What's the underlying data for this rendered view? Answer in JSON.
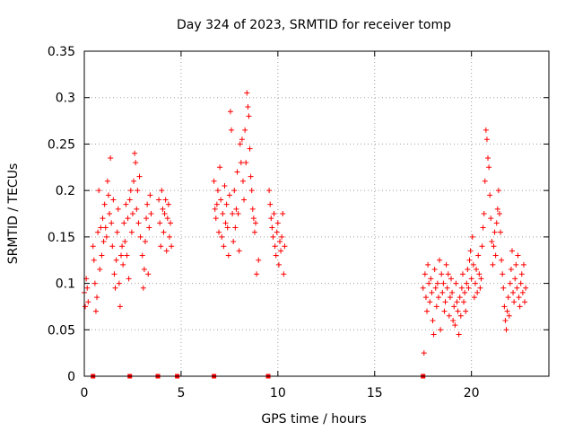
{
  "chart_data": {
    "type": "scatter",
    "title": "Day 324 of 2023, SRMTID for receiver tomp",
    "xlabel": "GPS time / hours",
    "ylabel": "SRMTID / TECUs",
    "xlim": [
      0,
      24
    ],
    "ylim": [
      0,
      0.35
    ],
    "xticks": [
      0,
      5,
      10,
      15,
      20
    ],
    "xtick_labels": [
      "0",
      "5",
      "10",
      "15",
      "20"
    ],
    "yticks": [
      0,
      0.05,
      0.1,
      0.15,
      0.2,
      0.25,
      0.3,
      0.35
    ],
    "ytick_labels": [
      "0",
      "0.05",
      "0.1",
      "0.15",
      "0.2",
      "0.25",
      "0.3",
      "0.35"
    ],
    "grid": true,
    "marker": "+",
    "color": "#ff0000",
    "series": [
      {
        "name": "SRMTID",
        "points": [
          [
            0.0,
            0.09
          ],
          [
            0.05,
            0.075
          ],
          [
            0.1,
            0.105
          ],
          [
            0.15,
            0.095
          ],
          [
            0.2,
            0.08
          ],
          [
            0.45,
            0.14
          ],
          [
            0.5,
            0.125
          ],
          [
            0.55,
            0.1
          ],
          [
            0.6,
            0.07
          ],
          [
            0.65,
            0.085
          ],
          [
            0.7,
            0.155
          ],
          [
            0.75,
            0.2
          ],
          [
            0.8,
            0.115
          ],
          [
            0.85,
            0.16
          ],
          [
            0.9,
            0.13
          ],
          [
            0.95,
            0.17
          ],
          [
            1.0,
            0.145
          ],
          [
            1.05,
            0.185
          ],
          [
            1.1,
            0.16
          ],
          [
            1.15,
            0.15
          ],
          [
            1.2,
            0.21
          ],
          [
            1.25,
            0.195
          ],
          [
            1.3,
            0.175
          ],
          [
            1.35,
            0.235
          ],
          [
            1.4,
            0.165
          ],
          [
            1.45,
            0.14
          ],
          [
            1.5,
            0.19
          ],
          [
            1.55,
            0.11
          ],
          [
            1.6,
            0.095
          ],
          [
            1.65,
            0.125
          ],
          [
            1.7,
            0.155
          ],
          [
            1.75,
            0.18
          ],
          [
            1.8,
            0.1
          ],
          [
            1.85,
            0.075
          ],
          [
            1.9,
            0.13
          ],
          [
            1.95,
            0.14
          ],
          [
            2.0,
            0.12
          ],
          [
            2.05,
            0.165
          ],
          [
            2.1,
            0.145
          ],
          [
            2.15,
            0.185
          ],
          [
            2.2,
            0.13
          ],
          [
            2.25,
            0.17
          ],
          [
            2.3,
            0.105
          ],
          [
            2.35,
            0.19
          ],
          [
            2.4,
            0.2
          ],
          [
            2.45,
            0.155
          ],
          [
            2.5,
            0.175
          ],
          [
            2.55,
            0.21
          ],
          [
            2.6,
            0.24
          ],
          [
            2.65,
            0.23
          ],
          [
            2.7,
            0.18
          ],
          [
            2.75,
            0.2
          ],
          [
            2.8,
            0.165
          ],
          [
            2.85,
            0.215
          ],
          [
            2.9,
            0.15
          ],
          [
            3.0,
            0.13
          ],
          [
            3.05,
            0.095
          ],
          [
            3.1,
            0.115
          ],
          [
            3.15,
            0.145
          ],
          [
            3.2,
            0.17
          ],
          [
            3.25,
            0.185
          ],
          [
            3.3,
            0.11
          ],
          [
            3.35,
            0.16
          ],
          [
            3.4,
            0.195
          ],
          [
            3.45,
            0.175
          ],
          [
            3.85,
            0.19
          ],
          [
            3.9,
            0.165
          ],
          [
            3.95,
            0.14
          ],
          [
            4.0,
            0.2
          ],
          [
            4.05,
            0.18
          ],
          [
            4.1,
            0.155
          ],
          [
            4.15,
            0.175
          ],
          [
            4.2,
            0.19
          ],
          [
            4.25,
            0.135
          ],
          [
            4.3,
            0.17
          ],
          [
            4.35,
            0.185
          ],
          [
            4.4,
            0.15
          ],
          [
            4.45,
            0.165
          ],
          [
            4.5,
            0.14
          ],
          [
            6.7,
            0.21
          ],
          [
            6.75,
            0.18
          ],
          [
            6.8,
            0.17
          ],
          [
            6.85,
            0.185
          ],
          [
            6.9,
            0.2
          ],
          [
            6.95,
            0.155
          ],
          [
            7.0,
            0.225
          ],
          [
            7.05,
            0.19
          ],
          [
            7.1,
            0.15
          ],
          [
            7.15,
            0.175
          ],
          [
            7.2,
            0.14
          ],
          [
            7.25,
            0.205
          ],
          [
            7.3,
            0.165
          ],
          [
            7.35,
            0.185
          ],
          [
            7.4,
            0.16
          ],
          [
            7.45,
            0.13
          ],
          [
            7.5,
            0.195
          ],
          [
            7.55,
            0.285
          ],
          [
            7.6,
            0.265
          ],
          [
            7.65,
            0.175
          ],
          [
            7.7,
            0.145
          ],
          [
            7.75,
            0.2
          ],
          [
            7.8,
            0.16
          ],
          [
            7.85,
            0.18
          ],
          [
            7.9,
            0.22
          ],
          [
            7.95,
            0.175
          ],
          [
            8.0,
            0.135
          ],
          [
            8.05,
            0.25
          ],
          [
            8.1,
            0.23
          ],
          [
            8.15,
            0.255
          ],
          [
            8.2,
            0.21
          ],
          [
            8.25,
            0.19
          ],
          [
            8.3,
            0.265
          ],
          [
            8.35,
            0.23
          ],
          [
            8.4,
            0.305
          ],
          [
            8.45,
            0.29
          ],
          [
            8.5,
            0.28
          ],
          [
            8.55,
            0.245
          ],
          [
            8.6,
            0.215
          ],
          [
            8.65,
            0.2
          ],
          [
            8.7,
            0.18
          ],
          [
            8.75,
            0.17
          ],
          [
            8.8,
            0.155
          ],
          [
            8.85,
            0.165
          ],
          [
            8.9,
            0.11
          ],
          [
            9.0,
            0.125
          ],
          [
            9.55,
            0.2
          ],
          [
            9.6,
            0.185
          ],
          [
            9.65,
            0.17
          ],
          [
            9.7,
            0.16
          ],
          [
            9.75,
            0.15
          ],
          [
            9.8,
            0.175
          ],
          [
            9.85,
            0.14
          ],
          [
            9.9,
            0.13
          ],
          [
            9.95,
            0.155
          ],
          [
            10.0,
            0.165
          ],
          [
            10.05,
            0.12
          ],
          [
            10.1,
            0.145
          ],
          [
            10.15,
            0.135
          ],
          [
            10.2,
            0.15
          ],
          [
            10.25,
            0.175
          ],
          [
            10.3,
            0.11
          ],
          [
            10.35,
            0.14
          ],
          [
            17.5,
            0.095
          ],
          [
            17.55,
            0.025
          ],
          [
            17.6,
            0.11
          ],
          [
            17.65,
            0.085
          ],
          [
            17.7,
            0.07
          ],
          [
            17.75,
            0.12
          ],
          [
            17.8,
            0.1
          ],
          [
            17.85,
            0.08
          ],
          [
            17.9,
            0.105
          ],
          [
            17.95,
            0.09
          ],
          [
            18.0,
            0.06
          ],
          [
            18.05,
            0.045
          ],
          [
            18.1,
            0.115
          ],
          [
            18.15,
            0.095
          ],
          [
            18.2,
            0.075
          ],
          [
            18.25,
            0.1
          ],
          [
            18.3,
            0.085
          ],
          [
            18.35,
            0.125
          ],
          [
            18.4,
            0.05
          ],
          [
            18.45,
            0.11
          ],
          [
            18.5,
            0.09
          ],
          [
            18.55,
            0.1
          ],
          [
            18.6,
            0.07
          ],
          [
            18.65,
            0.08
          ],
          [
            18.7,
            0.12
          ],
          [
            18.75,
            0.095
          ],
          [
            18.8,
            0.11
          ],
          [
            18.85,
            0.065
          ],
          [
            18.9,
            0.085
          ],
          [
            18.95,
            0.105
          ],
          [
            19.0,
            0.09
          ],
          [
            19.05,
            0.06
          ],
          [
            19.1,
            0.075
          ],
          [
            19.15,
            0.055
          ],
          [
            19.2,
            0.1
          ],
          [
            19.25,
            0.08
          ],
          [
            19.3,
            0.07
          ],
          [
            19.35,
            0.045
          ],
          [
            19.4,
            0.085
          ],
          [
            19.45,
            0.065
          ],
          [
            19.5,
            0.095
          ],
          [
            19.55,
            0.11
          ],
          [
            19.6,
            0.08
          ],
          [
            19.65,
            0.09
          ],
          [
            19.7,
            0.07
          ],
          [
            19.75,
            0.1
          ],
          [
            19.8,
            0.115
          ],
          [
            19.85,
            0.095
          ],
          [
            19.9,
            0.125
          ],
          [
            19.95,
            0.135
          ],
          [
            20.0,
            0.105
          ],
          [
            20.05,
            0.15
          ],
          [
            20.1,
            0.12
          ],
          [
            20.15,
            0.085
          ],
          [
            20.2,
            0.1
          ],
          [
            20.25,
            0.115
          ],
          [
            20.3,
            0.09
          ],
          [
            20.35,
            0.13
          ],
          [
            20.4,
            0.11
          ],
          [
            20.45,
            0.095
          ],
          [
            20.5,
            0.105
          ],
          [
            20.55,
            0.14
          ],
          [
            20.6,
            0.16
          ],
          [
            20.65,
            0.175
          ],
          [
            20.7,
            0.21
          ],
          [
            20.75,
            0.265
          ],
          [
            20.8,
            0.255
          ],
          [
            20.85,
            0.235
          ],
          [
            20.9,
            0.225
          ],
          [
            20.95,
            0.195
          ],
          [
            21.0,
            0.17
          ],
          [
            21.05,
            0.145
          ],
          [
            21.1,
            0.12
          ],
          [
            21.15,
            0.14
          ],
          [
            21.2,
            0.155
          ],
          [
            21.25,
            0.13
          ],
          [
            21.3,
            0.165
          ],
          [
            21.35,
            0.18
          ],
          [
            21.4,
            0.2
          ],
          [
            21.45,
            0.175
          ],
          [
            21.5,
            0.155
          ],
          [
            21.55,
            0.125
          ],
          [
            21.6,
            0.11
          ],
          [
            21.65,
            0.095
          ],
          [
            21.7,
            0.075
          ],
          [
            21.75,
            0.06
          ],
          [
            21.8,
            0.05
          ],
          [
            21.85,
            0.07
          ],
          [
            21.9,
            0.085
          ],
          [
            21.95,
            0.065
          ],
          [
            22.0,
            0.1
          ],
          [
            22.05,
            0.115
          ],
          [
            22.1,
            0.135
          ],
          [
            22.15,
            0.09
          ],
          [
            22.2,
            0.08
          ],
          [
            22.25,
            0.105
          ],
          [
            22.3,
            0.12
          ],
          [
            22.35,
            0.095
          ],
          [
            22.4,
            0.13
          ],
          [
            22.45,
            0.085
          ],
          [
            22.5,
            0.075
          ],
          [
            22.55,
            0.1
          ],
          [
            22.6,
            0.11
          ],
          [
            22.65,
            0.09
          ],
          [
            22.7,
            0.12
          ],
          [
            22.75,
            0.08
          ],
          [
            22.8,
            0.095
          ]
        ]
      },
      {
        "name": "zero markers",
        "marker": "square",
        "points": [
          [
            0.45,
            0
          ],
          [
            2.35,
            0
          ],
          [
            3.8,
            0
          ],
          [
            4.8,
            0
          ],
          [
            6.7,
            0
          ],
          [
            9.5,
            0
          ],
          [
            17.5,
            0
          ]
        ]
      }
    ]
  }
}
